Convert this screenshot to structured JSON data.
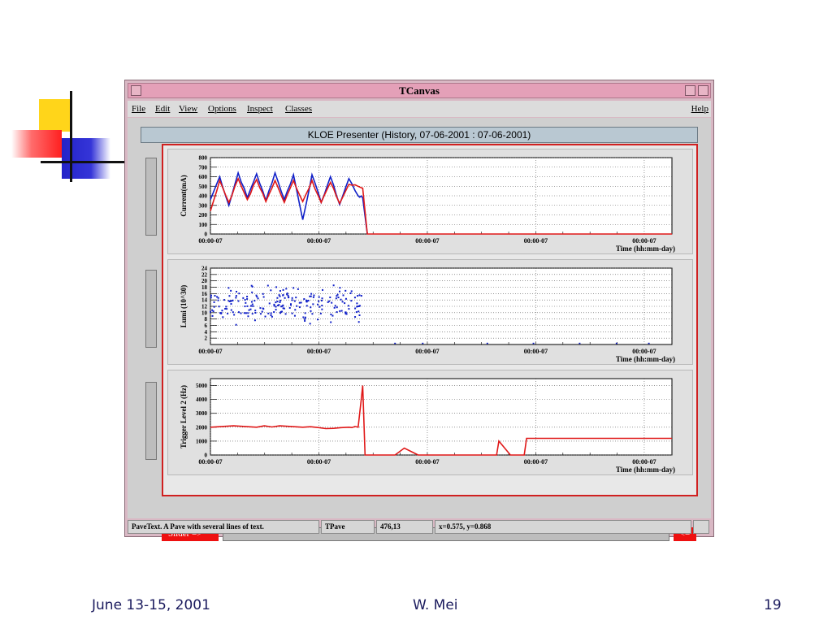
{
  "window": {
    "title": "TCanvas"
  },
  "menu": {
    "items": [
      "File",
      "Edit",
      "View",
      "Options",
      "Inspect",
      "Classes"
    ],
    "help": "Help"
  },
  "presenter": {
    "header": "KLOE Presenter (History, 07-06-2001 : 07-06-2001)"
  },
  "slider": {
    "left_label": "Slider =>",
    "right_label": "<="
  },
  "status": {
    "object_info": "PaveText. A Pave with several lines of text.",
    "class_name": "TPave",
    "pixel_pos": "476,13",
    "coords": "x=0.575, y=0.868"
  },
  "footer": {
    "date": "June 13-15, 2001",
    "author": "W. Mei",
    "page": "19"
  },
  "colors": {
    "series_blue": "#1020c8",
    "series_red": "#e01818",
    "frame_red": "#d02020"
  },
  "chart_data": [
    {
      "type": "line",
      "ylabel": "Current(mA)",
      "xlabel": "Time  (hh:mm-day)",
      "x_tick_labels": [
        "00:00-07",
        "00:00-07",
        "00:00-07",
        "00:00-07",
        "00:00-07"
      ],
      "y_tick_labels": [
        "0",
        "100",
        "200",
        "300",
        "400",
        "500",
        "600",
        "700",
        "800"
      ],
      "ylim": [
        0,
        800
      ],
      "grid": true,
      "series": [
        {
          "color": "blue",
          "values": [
            [
              0.0,
              360
            ],
            [
              0.02,
              600
            ],
            [
              0.04,
              300
            ],
            [
              0.06,
              640
            ],
            [
              0.08,
              380
            ],
            [
              0.1,
              630
            ],
            [
              0.12,
              350
            ],
            [
              0.14,
              640
            ],
            [
              0.16,
              360
            ],
            [
              0.18,
              620
            ],
            [
              0.2,
              150
            ],
            [
              0.22,
              620
            ],
            [
              0.24,
              330
            ],
            [
              0.26,
              600
            ],
            [
              0.28,
              310
            ],
            [
              0.3,
              580
            ],
            [
              0.32,
              400
            ],
            [
              0.33,
              380
            ],
            [
              0.34,
              0
            ]
          ]
        },
        {
          "color": "red",
          "values": [
            [
              0.0,
              240
            ],
            [
              0.02,
              560
            ],
            [
              0.04,
              330
            ],
            [
              0.06,
              580
            ],
            [
              0.08,
              360
            ],
            [
              0.1,
              570
            ],
            [
              0.12,
              340
            ],
            [
              0.14,
              560
            ],
            [
              0.16,
              330
            ],
            [
              0.18,
              560
            ],
            [
              0.2,
              340
            ],
            [
              0.22,
              560
            ],
            [
              0.24,
              330
            ],
            [
              0.26,
              540
            ],
            [
              0.28,
              320
            ],
            [
              0.3,
              520
            ],
            [
              0.32,
              500
            ],
            [
              0.33,
              480
            ],
            [
              0.34,
              0
            ],
            [
              1.0,
              0
            ]
          ]
        }
      ]
    },
    {
      "type": "scatter",
      "ylabel": "Lumi (10^30)",
      "xlabel": "Time  (hh:mm-day)",
      "x_tick_labels": [
        "00:00-07",
        "00:00-07",
        "00:00-07",
        "00:00-07",
        "00:00-07"
      ],
      "y_tick_labels": [
        "2",
        "4",
        "6",
        "8",
        "10",
        "12",
        "14",
        "16",
        "18",
        "20",
        "22",
        "24"
      ],
      "ylim": [
        0,
        24
      ],
      "grid": true,
      "series": [
        {
          "color": "blue",
          "x_range": [
            0.0,
            0.33
          ],
          "y_range": [
            4,
            19
          ],
          "y_mean": 13
        }
      ]
    },
    {
      "type": "line",
      "ylabel": "Trigger Level 2 (Hz)",
      "xlabel": "Time  (hh:mm-day)",
      "x_tick_labels": [
        "00:00-07",
        "00:00-07",
        "00:00-07",
        "00:00-07",
        "00:00-07"
      ],
      "y_tick_labels": [
        "0",
        "1000",
        "2000",
        "3000",
        "4000",
        "5000"
      ],
      "ylim": [
        0,
        5500
      ],
      "grid": true,
      "series": [
        {
          "color": "red",
          "values": [
            [
              0.0,
              2000
            ],
            [
              0.05,
              2100
            ],
            [
              0.1,
              2000
            ],
            [
              0.15,
              2100
            ],
            [
              0.2,
              2000
            ],
            [
              0.25,
              1900
            ],
            [
              0.3,
              2000
            ],
            [
              0.32,
              2000
            ],
            [
              0.33,
              5000
            ],
            [
              0.335,
              0
            ],
            [
              0.4,
              0
            ],
            [
              0.42,
              500
            ],
            [
              0.45,
              0
            ],
            [
              0.62,
              0
            ],
            [
              0.625,
              1000
            ],
            [
              0.65,
              0
            ],
            [
              0.68,
              0
            ],
            [
              0.685,
              1200
            ],
            [
              1.0,
              1200
            ]
          ]
        }
      ]
    }
  ]
}
